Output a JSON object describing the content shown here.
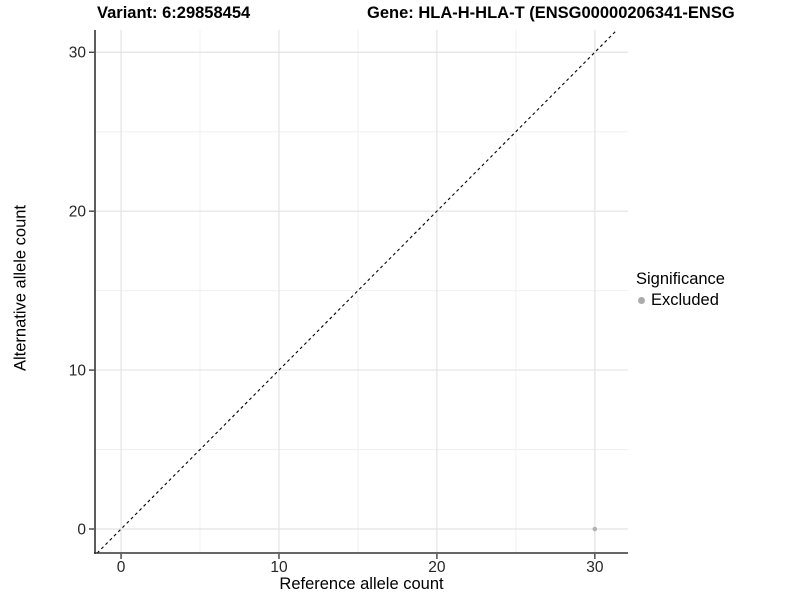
{
  "header": {
    "title_left": "Variant: 6:29858454",
    "title_right": "Gene: HLA-H-HLA-T (ENSG00000206341-ENSG"
  },
  "chart_data": {
    "type": "scatter",
    "title_left": "Variant: 6:29858454",
    "title_right": "Gene: HLA-H-HLA-T (ENSG00000206341-ENSG",
    "xlabel": "Reference allele count",
    "ylabel": "Alternative allele count",
    "xlim": [
      -1.65,
      32.1
    ],
    "ylim": [
      -1.51,
      31.4
    ],
    "x_ticks": [
      0,
      10,
      20,
      30
    ],
    "y_ticks": [
      0,
      10,
      20,
      30
    ],
    "x_minor_ticks": [
      5,
      15,
      25
    ],
    "y_minor_ticks": [
      5,
      15,
      25
    ],
    "grid": "major-and-minor",
    "identity_line": {
      "equation": "y = x",
      "style": "dashed",
      "color": "#000000",
      "from": [
        -5,
        -5
      ],
      "to": [
        36,
        36
      ]
    },
    "series": [
      {
        "name": "Excluded",
        "color": "#b2b2b2",
        "points": [
          {
            "x": 30,
            "y": 0
          }
        ]
      }
    ],
    "legend": {
      "title": "Significance",
      "position": "right",
      "items": [
        {
          "label": "Excluded",
          "color": "#ababab"
        }
      ]
    },
    "colors": {
      "background": "#ffffff",
      "grid_major": "#e3e3e3",
      "grid_minor": "#f0f0f0",
      "axis_line": "#333333",
      "tick_mark": "#333333",
      "tick_label": "#262626"
    }
  }
}
